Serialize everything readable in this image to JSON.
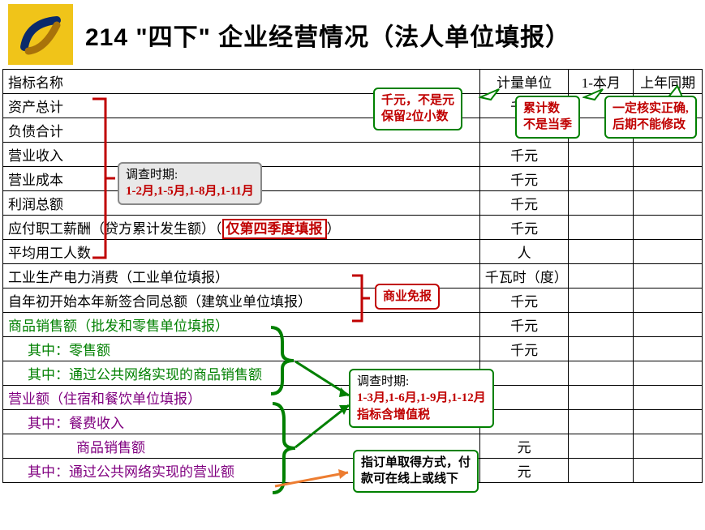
{
  "header": {
    "title": "214 \"四下\" 企业经营情况（法人单位填报）"
  },
  "table": {
    "headers": [
      "指标名称",
      "计量单位",
      "1-本月",
      "上年同期"
    ],
    "rows": [
      {
        "name": "资产总计",
        "unit": "千元"
      },
      {
        "name": "负债合计",
        "unit": ""
      },
      {
        "name": "营业收入",
        "unit": "千元"
      },
      {
        "name": "营业成本",
        "unit": "千元"
      },
      {
        "name": "利润总额",
        "unit": "千元"
      },
      {
        "name": "应付职工薪酬（贷方累计发生额）（",
        "note": "仅第四季度填报",
        "suffix": "）",
        "unit": "千元"
      },
      {
        "name": "平均用工人数",
        "unit": "人"
      },
      {
        "name": "工业生产电力消费（工业单位填报）",
        "unit": "千瓦时（度）"
      },
      {
        "name": "自年初开始本年新签合同总额（建筑业单位填报）",
        "unit": "千元"
      },
      {
        "name": "商品销售额（批发和零售单位填报）",
        "unit": "千元",
        "class": "green-text"
      },
      {
        "name": "其中：零售额",
        "unit": "千元",
        "class": "green-text indent1"
      },
      {
        "name": "其中：通过公共网络实现的商品销售额",
        "unit": "",
        "class": "green-text indent1"
      },
      {
        "name": "营业额（住宿和餐饮单位填报）",
        "unit": "",
        "class": "purple-text"
      },
      {
        "name": "其中：餐费收入",
        "unit": "",
        "class": "purple-text indent1"
      },
      {
        "name": "商品销售额",
        "unit": "元",
        "class": "purple-text indent2"
      },
      {
        "name": "其中：通过公共网络实现的营业额",
        "unit": "元",
        "class": "purple-text indent1"
      }
    ]
  },
  "callouts": {
    "topLeft": {
      "l1": "千元，不是元",
      "l2": "保留2位小数"
    },
    "topMid": {
      "l1": "累计数",
      "l2": "不是当季"
    },
    "topRight": {
      "l1": "一定核实正确,",
      "l2": "后期不能修改"
    },
    "survey1": {
      "title": "调查时期:",
      "body": "1-2月,1-5月,1-8月,1-11月"
    },
    "commerce": "商业免报",
    "survey2": {
      "title": "调查时期:",
      "l1": "1-3月,1-6月,1-9月,1-12月",
      "l2": "指标含增值税"
    },
    "order": {
      "l1": "指订单取得方式，付",
      "l2": "款可在线上或线下"
    }
  },
  "colors": {
    "green": "#008000",
    "red": "#c00000",
    "purple": "#800080",
    "yellow": "#f0c419",
    "gray": "#888888"
  }
}
